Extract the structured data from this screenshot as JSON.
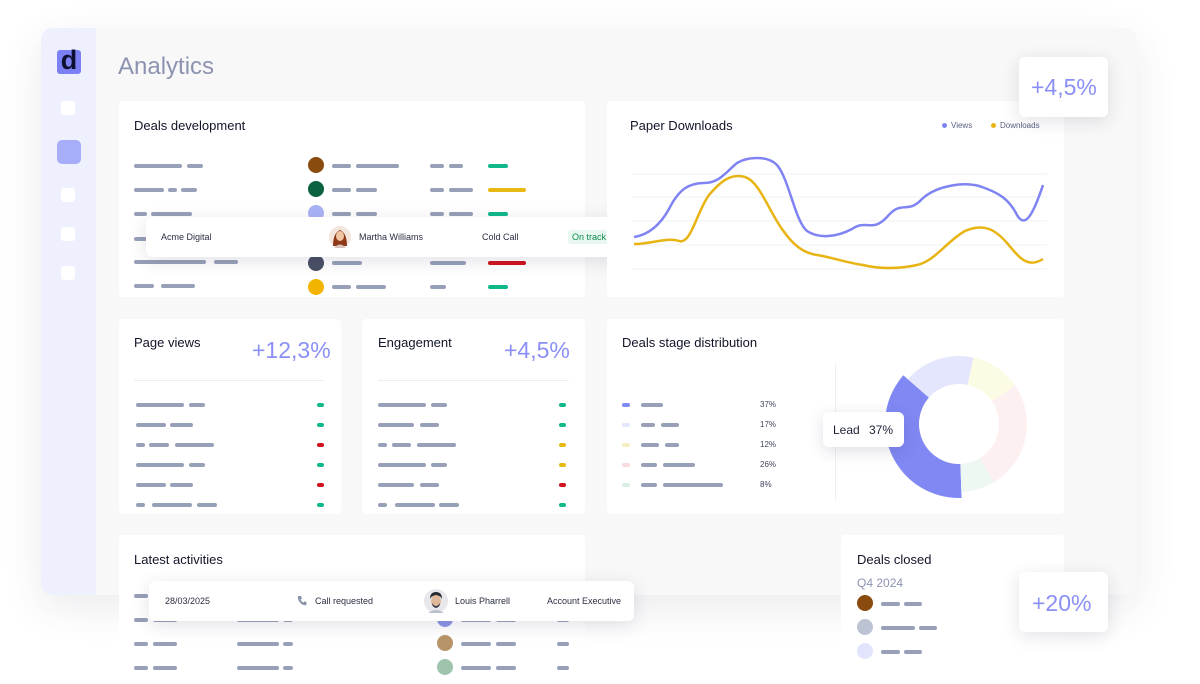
{
  "page": {
    "title": "Analytics"
  },
  "stats": {
    "top_right": "+4,5%",
    "deals_closed_change": "+20%"
  },
  "deals_development": {
    "title": "Deals development",
    "popup": {
      "company": "Acme Digital",
      "person": "Martha Williams",
      "type": "Cold Call",
      "status": "On track"
    },
    "row_dot_colors": [
      "#8a4b0f",
      "#0b6240",
      "#a8b2f5",
      "#4a5065",
      "#f2b400"
    ],
    "status_colors": [
      "#10b98a",
      "#e8b912",
      "#10b98a",
      "#d0141e",
      "#10b98a"
    ]
  },
  "paper_downloads": {
    "title": "Paper Downloads",
    "legend": {
      "views": "Views",
      "downloads": "Downloads"
    },
    "colors": {
      "views": "#7f84f2",
      "downloads": "#e8b413"
    }
  },
  "page_views": {
    "title": "Page views",
    "change": "+12,3%",
    "status_colors": [
      "#10b98a",
      "#10b98a",
      "#d0141e",
      "#10b98a",
      "#d0141e",
      "#10b98a"
    ]
  },
  "engagement": {
    "title": "Engagement",
    "change": "+4,5%",
    "status_colors": [
      "#10b98a",
      "#10b98a",
      "#e8b912",
      "#e8b912",
      "#d0141e",
      "#10b98a"
    ]
  },
  "deals_stage": {
    "title": "Deals stage distribution",
    "callout": {
      "label": "Lead",
      "value": "37%"
    },
    "chart_data": {
      "type": "pie",
      "values": [
        37,
        17,
        12,
        26,
        8
      ],
      "labels": [
        "37%",
        "17%",
        "12%",
        "26%",
        "8%"
      ],
      "colors": [
        "#8088f4",
        "#e4e6fd",
        "#fcfbe3",
        "#fdf0f1",
        "#eef8f2"
      ]
    }
  },
  "latest_activities": {
    "title": "Latest activities",
    "popup": {
      "date": "28/03/2025",
      "action": "Call requested",
      "person": "Louis Pharrell",
      "role": "Account Executive"
    },
    "row_dot_colors": [
      "#8d95e8",
      "#b8946b",
      "#9fc4ac"
    ]
  },
  "deals_closed": {
    "title": "Deals closed",
    "period": "Q4 2024",
    "row_dot_colors": [
      "#8a4b0f",
      "#bcc3d2",
      "#e1e4fc"
    ]
  }
}
